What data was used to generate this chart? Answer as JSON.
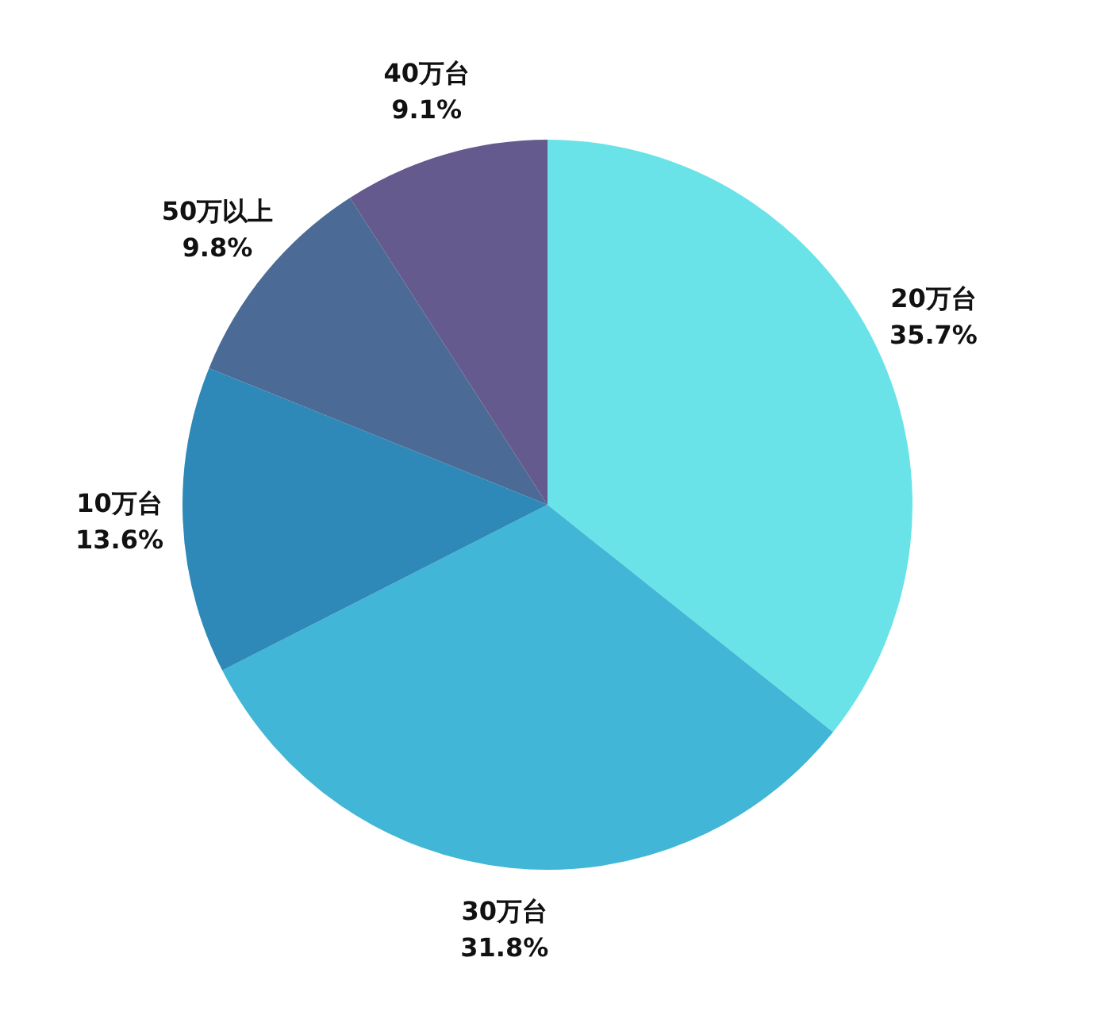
{
  "chart_data": {
    "type": "pie",
    "categories": [
      "20万台",
      "30万台",
      "10万台",
      "50万以上",
      "40万台"
    ],
    "values": [
      35.7,
      31.8,
      13.6,
      9.8,
      9.1
    ],
    "colors": [
      "#69e3e8",
      "#41b6d6",
      "#2e89b8",
      "#4b6b96",
      "#645a8d"
    ],
    "value_labels": [
      "35.7%",
      "31.8%",
      "13.6%",
      "9.8%",
      "9.1%"
    ]
  }
}
